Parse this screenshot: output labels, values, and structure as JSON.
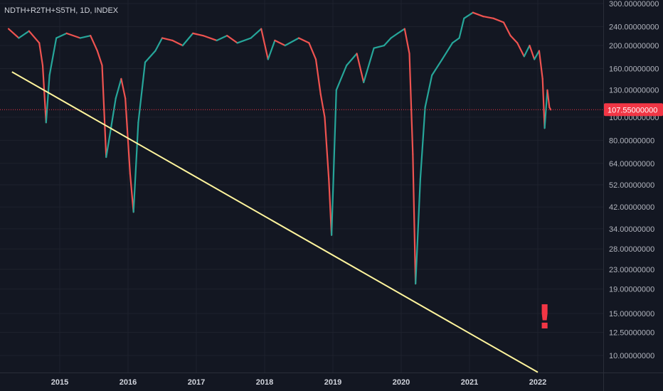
{
  "chart_data": {
    "type": "line",
    "title": "NDTH+R2TH+S5TH, 1D, INDEX",
    "last_price_label": "107.55000000",
    "last_price": 107.55,
    "y_scale": "log",
    "ylim": [
      8.5,
      300
    ],
    "xlim": [
      2014.25,
      2022.8
    ],
    "grid": true,
    "y_ticks": [
      {
        "value": 300,
        "label": "300.00000000"
      },
      {
        "value": 240,
        "label": "240.00000000"
      },
      {
        "value": 200,
        "label": "200.00000000"
      },
      {
        "value": 160,
        "label": "160.00000000"
      },
      {
        "value": 130,
        "label": "130.00000000"
      },
      {
        "value": 100,
        "label": "100.00000000"
      },
      {
        "value": 80,
        "label": "80.00000000"
      },
      {
        "value": 64,
        "label": "64.00000000"
      },
      {
        "value": 52,
        "label": "52.00000000"
      },
      {
        "value": 42,
        "label": "42.00000000"
      },
      {
        "value": 34,
        "label": "34.00000000"
      },
      {
        "value": 28,
        "label": "28.00000000"
      },
      {
        "value": 23,
        "label": "23.00000000"
      },
      {
        "value": 19,
        "label": "19.00000000"
      },
      {
        "value": 15,
        "label": "15.00000000"
      },
      {
        "value": 12.5,
        "label": "12.50000000"
      },
      {
        "value": 10,
        "label": "10.00000000"
      }
    ],
    "x_ticks": [
      {
        "value": 2015,
        "label": "2015"
      },
      {
        "value": 2016,
        "label": "2016"
      },
      {
        "value": 2017,
        "label": "2017"
      },
      {
        "value": 2018,
        "label": "2018"
      },
      {
        "value": 2019,
        "label": "2019"
      },
      {
        "value": 2020,
        "label": "2020"
      },
      {
        "value": 2021,
        "label": "2021"
      },
      {
        "value": 2022,
        "label": "2022"
      }
    ],
    "series": [
      {
        "color_up": "#26a69a",
        "color_down": "#ef5350",
        "points": [
          [
            2014.25,
            235
          ],
          [
            2014.4,
            215
          ],
          [
            2014.55,
            230
          ],
          [
            2014.7,
            205
          ],
          [
            2014.75,
            165
          ],
          [
            2014.8,
            95
          ],
          [
            2014.85,
            150
          ],
          [
            2014.95,
            215
          ],
          [
            2015.1,
            225
          ],
          [
            2015.3,
            215
          ],
          [
            2015.45,
            220
          ],
          [
            2015.55,
            190
          ],
          [
            2015.62,
            165
          ],
          [
            2015.68,
            68
          ],
          [
            2015.75,
            90
          ],
          [
            2015.82,
            120
          ],
          [
            2015.9,
            145
          ],
          [
            2015.96,
            120
          ],
          [
            2016.03,
            58
          ],
          [
            2016.08,
            40
          ],
          [
            2016.15,
            95
          ],
          [
            2016.25,
            170
          ],
          [
            2016.4,
            190
          ],
          [
            2016.5,
            215
          ],
          [
            2016.65,
            210
          ],
          [
            2016.8,
            200
          ],
          [
            2016.95,
            225
          ],
          [
            2017.1,
            220
          ],
          [
            2017.3,
            210
          ],
          [
            2017.45,
            220
          ],
          [
            2017.6,
            205
          ],
          [
            2017.8,
            215
          ],
          [
            2017.95,
            235
          ],
          [
            2018.05,
            175
          ],
          [
            2018.15,
            210
          ],
          [
            2018.3,
            200
          ],
          [
            2018.5,
            215
          ],
          [
            2018.65,
            205
          ],
          [
            2018.75,
            175
          ],
          [
            2018.82,
            125
          ],
          [
            2018.88,
            100
          ],
          [
            2018.94,
            55
          ],
          [
            2018.98,
            32
          ],
          [
            2019.05,
            130
          ],
          [
            2019.2,
            165
          ],
          [
            2019.35,
            185
          ],
          [
            2019.45,
            140
          ],
          [
            2019.6,
            195
          ],
          [
            2019.75,
            200
          ],
          [
            2019.85,
            215
          ],
          [
            2019.95,
            225
          ],
          [
            2020.05,
            235
          ],
          [
            2020.12,
            185
          ],
          [
            2020.17,
            70
          ],
          [
            2020.21,
            20
          ],
          [
            2020.28,
            55
          ],
          [
            2020.35,
            110
          ],
          [
            2020.45,
            150
          ],
          [
            2020.6,
            175
          ],
          [
            2020.75,
            205
          ],
          [
            2020.85,
            215
          ],
          [
            2020.92,
            260
          ],
          [
            2021.05,
            275
          ],
          [
            2021.2,
            265
          ],
          [
            2021.35,
            260
          ],
          [
            2021.5,
            250
          ],
          [
            2021.6,
            220
          ],
          [
            2021.7,
            205
          ],
          [
            2021.8,
            180
          ],
          [
            2021.88,
            200
          ],
          [
            2021.95,
            175
          ],
          [
            2022.02,
            190
          ],
          [
            2022.07,
            145
          ],
          [
            2022.1,
            90
          ],
          [
            2022.14,
            130
          ],
          [
            2022.17,
            110
          ],
          [
            2022.19,
            107.55
          ]
        ]
      }
    ],
    "trend_line": {
      "color": "#fff59d",
      "from": [
        2014.3,
        155
      ],
      "to": [
        2022.0,
        8.5
      ]
    },
    "annotation": {
      "text": "!",
      "color": "#f23645",
      "x": 2022.1,
      "y": 14.5
    }
  }
}
